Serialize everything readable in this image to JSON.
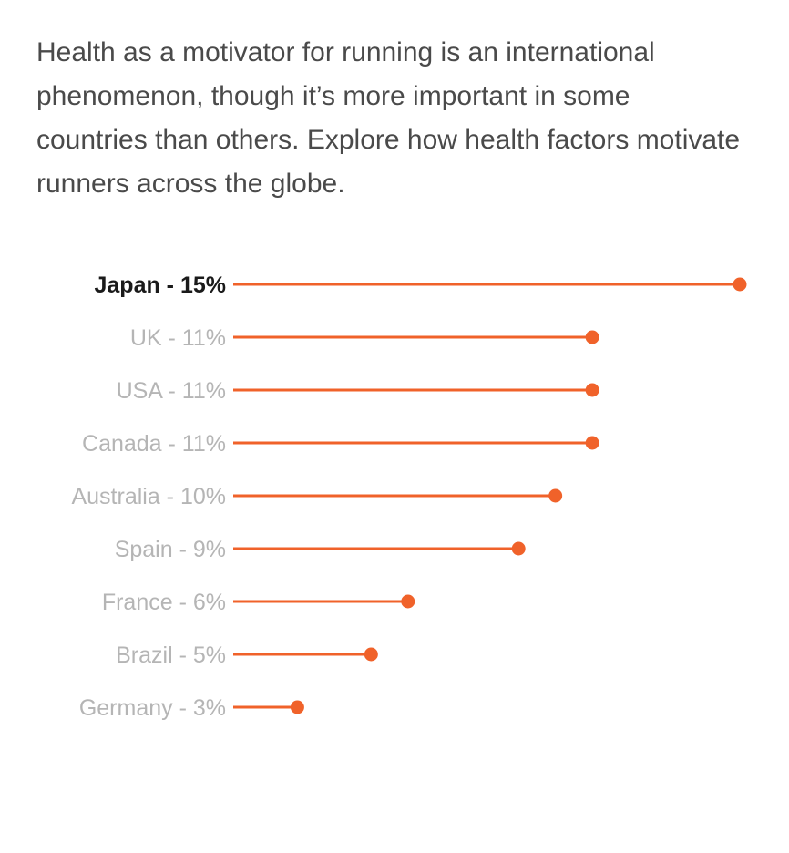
{
  "intro_text": "Health as a motivator for running is an international phenomenon, though it’s more important in some countries than others. Explore how health factors motivate runners across the globe.",
  "colors": {
    "accent": "#f0622a",
    "label_active": "#1a1a1a",
    "label_inactive": "#b5b5b5",
    "intro_text": "#4a4a4a"
  },
  "chart_data": {
    "type": "bar",
    "categories": [
      "Japan",
      "UK",
      "USA",
      "Canada",
      "Australia",
      "Spain",
      "France",
      "Brazil",
      "Germany"
    ],
    "labels": [
      "Japan - 15%",
      "UK - 11%",
      "USA - 11%",
      "Canada - 11%",
      "Australia - 10%",
      "Spain - 9%",
      "France - 6%",
      "Brazil - 5%",
      "Germany - 3%"
    ],
    "values": [
      15,
      11,
      11,
      11,
      10,
      9,
      6,
      5,
      3
    ],
    "unit": "%",
    "highlighted": "Japan",
    "xlim": [
      0,
      15
    ],
    "grid": false,
    "legend": "none",
    "style": "lollipop"
  }
}
